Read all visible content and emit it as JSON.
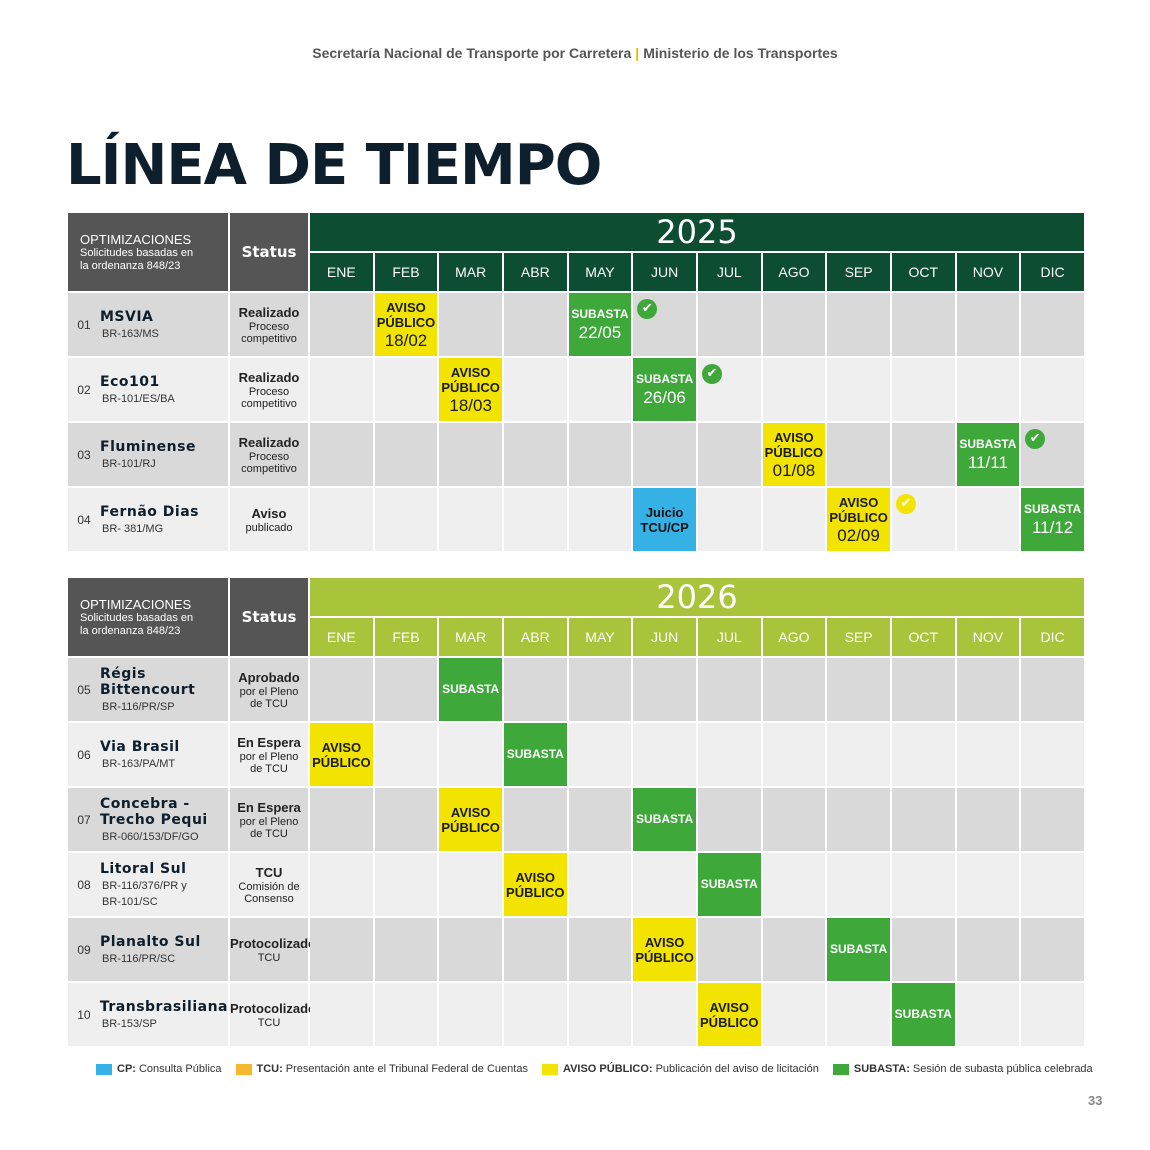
{
  "header": {
    "left": "Secretaría Nacional de Transporte por Carretera",
    "sep": "|",
    "right": "Ministerio de los Transportes"
  },
  "title": "LÍNEA DE TIEMPO",
  "table_header": {
    "label_line1": "OPTIMIZACIONES",
    "label_line2": "Solicitudes basadas en",
    "label_line3": "la ordenanza 848/23",
    "status": "Status"
  },
  "months": [
    "ENE",
    "FEB",
    "MAR",
    "ABR",
    "MAY",
    "JUN",
    "JUL",
    "AGO",
    "SEP",
    "OCT",
    "NOV",
    "DIC"
  ],
  "colors": {
    "year_2025": "#0d4d32",
    "year_2026": "#a8c43a",
    "aviso": "#f2e400",
    "subasta": "#3ea83a",
    "cp": "#35b1e6",
    "tcu": "#f5b82e"
  },
  "tables": [
    {
      "year": "2025",
      "rows": [
        {
          "num": "01",
          "name": [
            "MSVIA"
          ],
          "code": [
            "BR-163/MS"
          ],
          "status": [
            "Realizado",
            "Proceso",
            "competitivo"
          ],
          "events": [
            {
              "month": 1,
              "type": "yellow",
              "label": [
                "AVISO",
                "PÚBLICO"
              ],
              "date": "18/02"
            },
            {
              "month": 4,
              "type": "green",
              "label": [
                "SUBASTA"
              ],
              "date": "22/05"
            }
          ],
          "check": {
            "month": 5,
            "color": "green"
          }
        },
        {
          "num": "02",
          "name": [
            "Eco101"
          ],
          "code": [
            "BR-101/ES/BA"
          ],
          "status": [
            "Realizado",
            "Proceso",
            "competitivo"
          ],
          "events": [
            {
              "month": 2,
              "type": "yellow",
              "label": [
                "AVISO",
                "PÚBLICO"
              ],
              "date": "18/03"
            },
            {
              "month": 5,
              "type": "green",
              "label": [
                "SUBASTA"
              ],
              "date": "26/06"
            }
          ],
          "check": {
            "month": 6,
            "color": "green"
          }
        },
        {
          "num": "03",
          "name": [
            "Fluminense"
          ],
          "code": [
            "BR-101/RJ"
          ],
          "status": [
            "Realizado",
            "Proceso",
            "competitivo"
          ],
          "events": [
            {
              "month": 7,
              "type": "yellow",
              "label": [
                "AVISO",
                "PÚBLICO"
              ],
              "date": "01/08"
            },
            {
              "month": 10,
              "type": "green",
              "label": [
                "SUBASTA"
              ],
              "date": "11/11"
            }
          ],
          "check": {
            "month": 11,
            "color": "green"
          }
        },
        {
          "num": "04",
          "name": [
            "Fernão Dias"
          ],
          "code": [
            "BR- 381/MG"
          ],
          "status": [
            "Aviso",
            "publicado"
          ],
          "events": [
            {
              "month": 5,
              "type": "blue",
              "label": [
                "Juicio",
                "TCU/CP"
              ],
              "date": ""
            },
            {
              "month": 8,
              "type": "yellow",
              "label": [
                "AVISO",
                "PÚBLICO"
              ],
              "date": "02/09"
            },
            {
              "month": 11,
              "type": "green",
              "label": [
                "SUBASTA"
              ],
              "date": "11/12"
            }
          ],
          "check": {
            "month": 9,
            "color": "yellow"
          }
        }
      ]
    },
    {
      "year": "2026",
      "rows": [
        {
          "num": "05",
          "name": [
            "Régis",
            "Bittencourt"
          ],
          "code": [
            "BR-116/PR/SP"
          ],
          "status": [
            "Aprobado",
            "por el Pleno",
            "de TCU"
          ],
          "events": [
            {
              "month": 2,
              "type": "green",
              "label": [
                "SUBASTA"
              ],
              "date": ""
            }
          ]
        },
        {
          "num": "06",
          "name": [
            "Via Brasil"
          ],
          "code": [
            "BR-163/PA/MT"
          ],
          "status": [
            "En Espera",
            "por el Pleno",
            "de TCU"
          ],
          "events": [
            {
              "month": 0,
              "type": "yellow",
              "label": [
                "AVISO",
                "PÚBLICO"
              ],
              "date": ""
            },
            {
              "month": 3,
              "type": "green",
              "label": [
                "SUBASTA"
              ],
              "date": ""
            }
          ]
        },
        {
          "num": "07",
          "name": [
            "Concebra -",
            "Trecho Pequi"
          ],
          "code": [
            "BR-060/153/DF/GO"
          ],
          "status": [
            "En Espera",
            "por el Pleno",
            "de TCU"
          ],
          "events": [
            {
              "month": 2,
              "type": "yellow",
              "label": [
                "AVISO",
                "PÚBLICO"
              ],
              "date": ""
            },
            {
              "month": 5,
              "type": "green",
              "label": [
                "SUBASTA"
              ],
              "date": ""
            }
          ]
        },
        {
          "num": "08",
          "name": [
            "Litoral Sul"
          ],
          "code": [
            "BR-116/376/PR y",
            "BR-101/SC"
          ],
          "status": [
            "TCU",
            "Comisión de",
            "Consenso"
          ],
          "events": [
            {
              "month": 3,
              "type": "yellow",
              "label": [
                "AVISO",
                "PÚBLICO"
              ],
              "date": ""
            },
            {
              "month": 6,
              "type": "green",
              "label": [
                "SUBASTA"
              ],
              "date": ""
            }
          ]
        },
        {
          "num": "09",
          "name": [
            "Planalto Sul"
          ],
          "code": [
            "BR-116/PR/SC"
          ],
          "status": [
            "Protocolizado",
            "TCU"
          ],
          "events": [
            {
              "month": 5,
              "type": "yellow",
              "label": [
                "AVISO",
                "PÚBLICO"
              ],
              "date": ""
            },
            {
              "month": 8,
              "type": "green",
              "label": [
                "SUBASTA"
              ],
              "date": ""
            }
          ]
        },
        {
          "num": "10",
          "name": [
            "Transbrasiliana"
          ],
          "code": [
            "BR-153/SP"
          ],
          "status": [
            "Protocolizado",
            "TCU"
          ],
          "events": [
            {
              "month": 6,
              "type": "yellow",
              "label": [
                "AVISO",
                "PÚBLICO"
              ],
              "date": ""
            },
            {
              "month": 9,
              "type": "green",
              "label": [
                "SUBASTA"
              ],
              "date": ""
            }
          ]
        }
      ]
    }
  ],
  "legend": [
    {
      "color": "#35b1e6",
      "key": "CP:",
      "text": "Consulta Pública"
    },
    {
      "color": "#f5b82e",
      "key": "TCU:",
      "text": "Presentación ante el Tribunal Federal de Cuentas"
    },
    {
      "color": "#f2e400",
      "key": "AVISO PÚBLICO:",
      "text": "Publicación del aviso de licitación"
    },
    {
      "color": "#3ea83a",
      "key": "SUBASTA:",
      "text": "Sesión de subasta pública celebrada"
    }
  ],
  "page_number": "33"
}
